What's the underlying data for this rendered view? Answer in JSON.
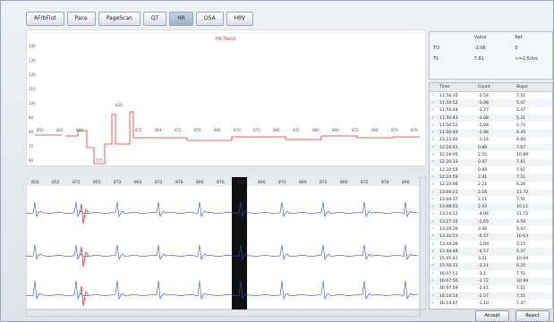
{
  "tabs": [
    "AF/bFlut",
    "Pace",
    "PageScan",
    "QT",
    "HR",
    "OSA",
    "HRV"
  ],
  "selected_tab": "HR",
  "trend": {
    "title": "HR Trend",
    "yticks": [
      "140",
      "130",
      "120",
      "110",
      "100",
      "90",
      "80",
      "70",
      "60"
    ],
    "labels": [
      "850",
      "842",
      "869",
      "775",
      "826",
      "872",
      "864",
      "872",
      "878",
      "866",
      "870",
      "872",
      "866",
      "872",
      "880",
      "890",
      "872",
      "866",
      "870",
      "878"
    ]
  },
  "strip_labels": [
    "850",
    "852",
    "872",
    "855",
    "872",
    "864",
    "872",
    "878",
    "866",
    "870",
    "872",
    "866",
    "872",
    "880",
    "872",
    "866",
    "872",
    "878",
    "866"
  ],
  "summary": {
    "headers": [
      "",
      "Value",
      "Ref."
    ],
    "rows": [
      [
        "TO",
        "-2.06",
        "0"
      ],
      [
        "TS",
        "7.81",
        "<=2.5/ms"
      ]
    ]
  },
  "list": {
    "headers": [
      "Time",
      "Count",
      "Slope"
    ],
    "rows": [
      [
        "11:50:35",
        "-2.54",
        "7.51"
      ],
      [
        "11:50:52",
        "-3.08",
        "5.47"
      ],
      [
        "11:50:44",
        "-1.27",
        "5.47"
      ],
      [
        "11:50:43",
        "-3.08",
        "5.21"
      ],
      [
        "11:50:52",
        "-2.08",
        "2.72"
      ],
      [
        "11:50:49",
        "-1.96",
        "4.45"
      ],
      [
        "12:15:02",
        "-1.14",
        "4.60"
      ],
      [
        "12:16:01",
        "0.89",
        "7.67"
      ],
      [
        "12:16:05",
        "2.55",
        "10.99"
      ],
      [
        "12:20:33",
        "0.47",
        "7.61"
      ],
      [
        "12:20:59",
        "0.95",
        "7.61"
      ],
      [
        "12:20:59",
        "2.41",
        "7.51"
      ],
      [
        "12:20:06",
        "2.21",
        "6.26"
      ],
      [
        "13:00:21",
        "2.16",
        "11.72"
      ],
      [
        "13:00:37",
        "2.11",
        "7.51"
      ],
      [
        "13:08:53",
        "2.33",
        "10.11"
      ],
      [
        "13:14:12",
        "-4.06",
        "11.72"
      ],
      [
        "13:27:15",
        "-2.65",
        "4.59"
      ],
      [
        "13:29:26",
        "3.06",
        "5.47"
      ],
      [
        "13:32:53",
        "-0.57",
        "10.63"
      ],
      [
        "13:44:26",
        "-1.09",
        "5.15"
      ],
      [
        "13:44:48",
        "-4.57",
        "5.47"
      ],
      [
        "15:45:41",
        "3.21",
        "10.94"
      ],
      [
        "15:50:31",
        "-2.21",
        "6.25"
      ],
      [
        "16:07:51",
        "-3.1",
        "7.51"
      ],
      [
        "16:07:56",
        "-1.72",
        "10.94"
      ],
      [
        "16:07:59",
        "-2.41",
        "7.51"
      ],
      [
        "16:10:14",
        "-2.57",
        "7.51"
      ],
      [
        "16:14:07",
        "-1.10",
        "7.47"
      ]
    ]
  },
  "buttons": [
    "Accept",
    "Reject"
  ]
}
